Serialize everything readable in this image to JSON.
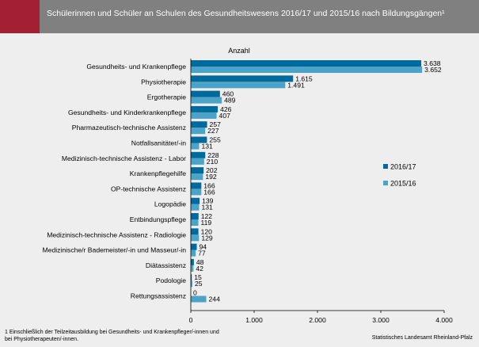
{
  "header": {
    "title": "Schülerinnen und Schüler an Schulen des Gesundheitswesens 2016/17 und 2015/16 nach Bildungsgängen¹"
  },
  "colors": {
    "header_bg": "#808080",
    "accent": "#a31f34",
    "series_2016_17": "#006a9c",
    "series_2015_16": "#4ba3c7"
  },
  "footer": {
    "footnote_line1": "1 Einschließlich der Teilzeitausbildung bei Gesundheits- und Krankenpfleger/-innen und",
    "footnote_line2": "bei Physiotherapeuten/-innen.",
    "source": "Statistisches Landesamt Rheinland-Pfalz"
  },
  "chart_data": {
    "type": "bar",
    "orientation": "horizontal",
    "title": "Schülerinnen und Schüler an Schulen des Gesundheitswesens 2016/17 und 2015/16 nach Bildungsgängen¹",
    "xlabel": "Anzahl",
    "xlim": [
      0,
      4000
    ],
    "x_ticks": [
      0,
      1000,
      2000,
      3000,
      4000
    ],
    "x_tick_labels": [
      "0",
      "1.000",
      "2.000",
      "3.000",
      "4.000"
    ],
    "grid": false,
    "legend_position": "right",
    "categories": [
      "Gesundheits- und Krankenpflege",
      "Physiotherapie",
      "Ergotherapie",
      "Gesundheits- und Kinderkrankenpflege",
      "Pharmazeutisch-technische Assistenz",
      "Notfallsanitäter/-in",
      "Medizinisch-technische Assistenz - Labor",
      "Krankenpflegehilfe",
      "OP-technische Assistenz",
      "Logopädie",
      "Entbindungspflege",
      "Medizinisch-technische Assistenz - Radiologie",
      "Medizinische/r Bademeister/-in und Masseur/-in",
      "Diätassistenz",
      "Podologie",
      "Rettungsassistenz"
    ],
    "series": [
      {
        "name": "2016/17",
        "color": "#006a9c",
        "values": [
          3638,
          1615,
          460,
          426,
          257,
          255,
          228,
          202,
          166,
          139,
          122,
          120,
          94,
          48,
          15,
          0
        ],
        "labels": [
          "3.638",
          "1.615",
          "460",
          "426",
          "257",
          "255",
          "228",
          "202",
          "166",
          "139",
          "122",
          "120",
          "94",
          "48",
          "15",
          "0"
        ]
      },
      {
        "name": "2015/16",
        "color": "#4ba3c7",
        "values": [
          3652,
          1491,
          489,
          407,
          227,
          131,
          210,
          192,
          166,
          131,
          119,
          129,
          77,
          42,
          25,
          244
        ],
        "labels": [
          "3.652",
          "1.491",
          "489",
          "407",
          "227",
          "131",
          "210",
          "192",
          "166",
          "131",
          "119",
          "129",
          "77",
          "42",
          "25",
          "244"
        ]
      }
    ]
  }
}
